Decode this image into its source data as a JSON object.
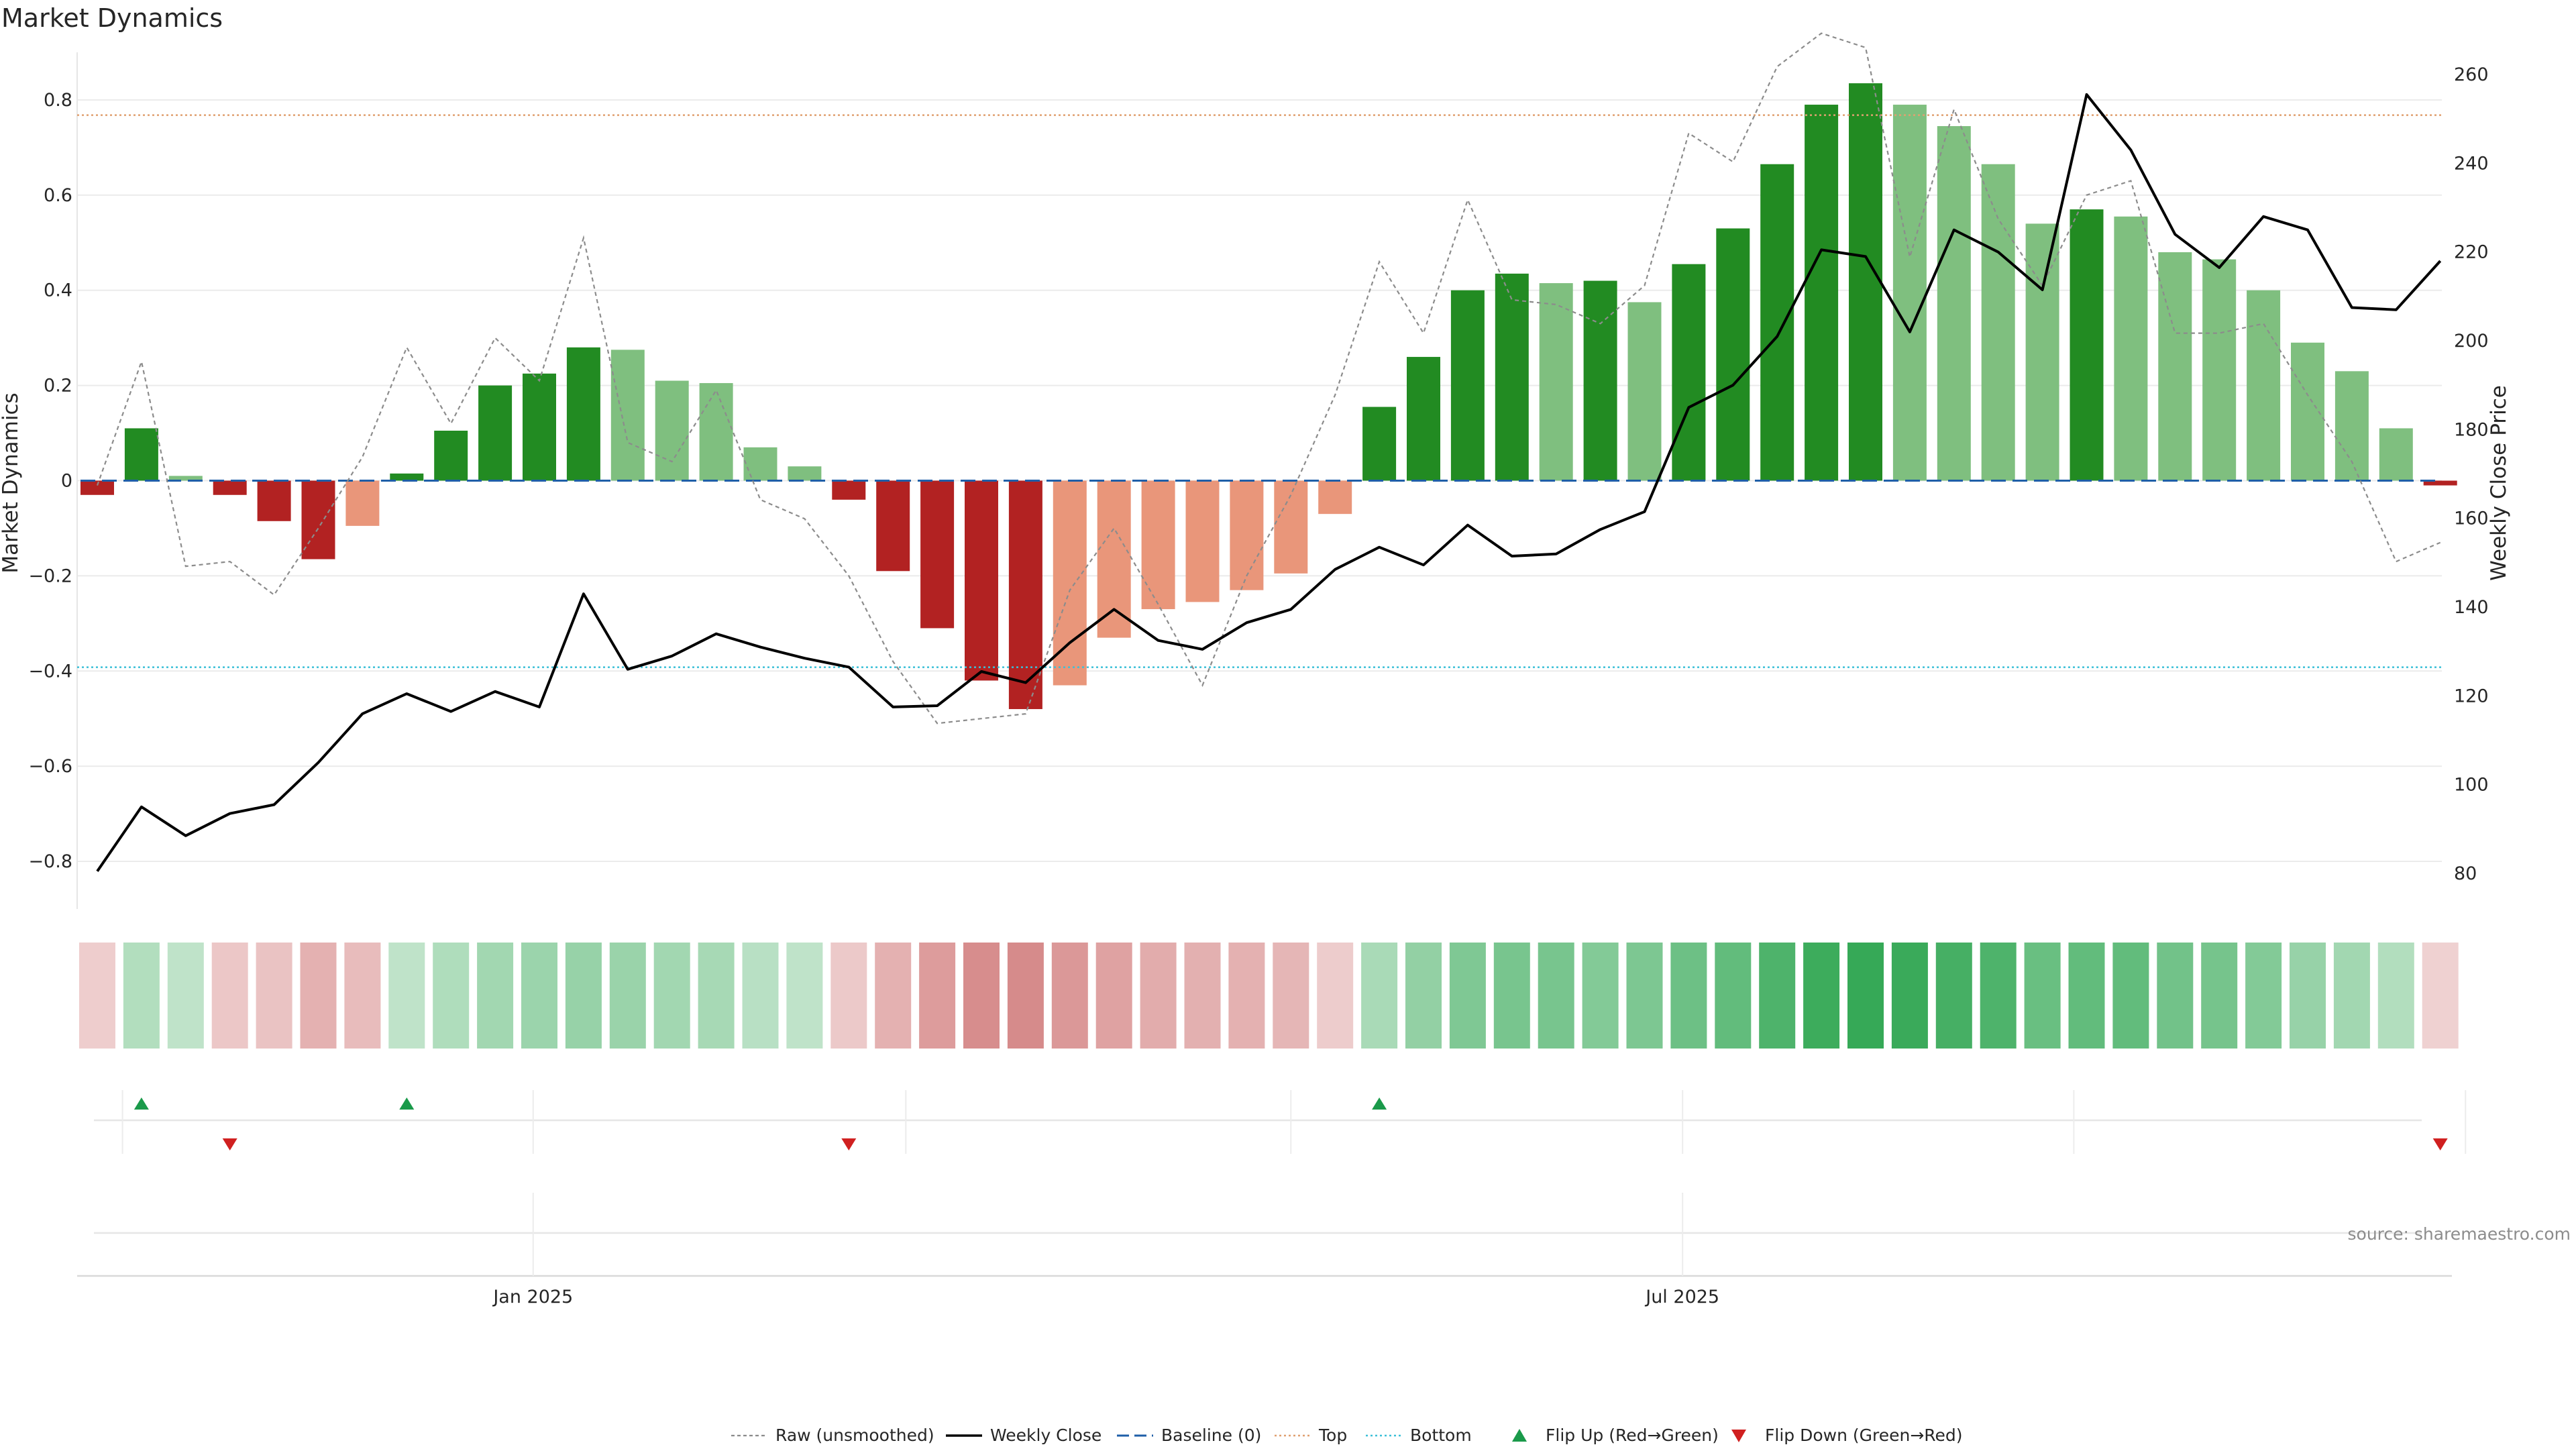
{
  "chart_data": {
    "type": "bar",
    "title": "Market Dynamics",
    "ylabel": "Market Dynamics",
    "y2label": "Weekly Close Price",
    "ylim": [
      -0.9,
      0.9
    ],
    "y2lim": [
      72,
      265
    ],
    "yticks": [
      -0.8,
      -0.6,
      -0.4,
      -0.2,
      0,
      0.2,
      0.4,
      0.6,
      0.8
    ],
    "ytick_labels": [
      "−0.8",
      "−0.6",
      "−0.4",
      "−0.2",
      "0",
      "0.2",
      "0.4",
      "0.6",
      "0.8"
    ],
    "y2ticks": [
      80,
      100,
      120,
      140,
      160,
      180,
      200,
      220,
      240,
      260
    ],
    "xtick_labels": [
      {
        "label": "Jan 2025",
        "index": 9.86
      },
      {
        "label": "Jul 2025",
        "index": 35.86
      }
    ],
    "week_separators": [
      0.57,
      9.86,
      18.29,
      27.0,
      35.86,
      44.71,
      53.57
    ],
    "top_level": 0.768,
    "bottom_level": -0.392,
    "baseline": 0,
    "values": [
      -0.03,
      0.11,
      0.01,
      -0.03,
      -0.085,
      -0.165,
      -0.095,
      0.015,
      0.105,
      0.2,
      0.225,
      0.28,
      0.275,
      0.21,
      0.205,
      0.07,
      0.03,
      -0.04,
      -0.19,
      -0.31,
      -0.42,
      -0.48,
      -0.43,
      -0.33,
      -0.27,
      -0.255,
      -0.23,
      -0.195,
      -0.07,
      0.155,
      0.26,
      0.4,
      0.435,
      0.415,
      0.42,
      0.375,
      0.455,
      0.53,
      0.665,
      0.79,
      0.835,
      0.79,
      0.745,
      0.665,
      0.54,
      0.57,
      0.555,
      0.48,
      0.465,
      0.4,
      0.29,
      0.23,
      0.11,
      -0.01
    ],
    "bar_tone": [
      "strong",
      "strong",
      "faded",
      "strong",
      "strong",
      "strong",
      "faded",
      "strong",
      "strong",
      "strong",
      "strong",
      "strong",
      "faded",
      "faded",
      "faded",
      "faded",
      "faded",
      "strong",
      "strong",
      "strong",
      "strong",
      "strong",
      "faded",
      "faded",
      "faded",
      "faded",
      "faded",
      "faded",
      "faded",
      "strong",
      "strong",
      "strong",
      "strong",
      "faded",
      "strong",
      "faded",
      "strong",
      "strong",
      "strong",
      "strong",
      "strong",
      "faded",
      "faded",
      "faded",
      "faded",
      "strong",
      "faded",
      "faded",
      "faded",
      "faded",
      "faded",
      "faded",
      "faded",
      "strong"
    ],
    "raw": [
      -0.01,
      0.25,
      -0.18,
      -0.17,
      -0.24,
      -0.1,
      0.05,
      0.28,
      0.12,
      0.3,
      0.21,
      0.51,
      0.08,
      0.04,
      0.19,
      -0.04,
      -0.08,
      -0.2,
      -0.38,
      -0.51,
      -0.5,
      -0.49,
      -0.23,
      -0.1,
      -0.26,
      -0.43,
      -0.2,
      -0.03,
      0.18,
      0.46,
      0.31,
      0.59,
      0.38,
      0.37,
      0.33,
      0.41,
      0.73,
      0.67,
      0.87,
      0.94,
      0.91,
      0.47,
      0.78,
      0.55,
      0.41,
      0.6,
      0.63,
      0.31,
      0.31,
      0.33,
      0.18,
      0.04,
      -0.17,
      -0.13
    ],
    "weekly_close": [
      80.5,
      95,
      88.5,
      93.5,
      95.5,
      105,
      116,
      120.5,
      116.5,
      121,
      117.5,
      143,
      126,
      129,
      134,
      131,
      128.5,
      126.5,
      117.5,
      117.8,
      125.5,
      123,
      132,
      139.5,
      132.5,
      130.5,
      136.5,
      139.5,
      148.5,
      153.5,
      149.5,
      158.5,
      151.5,
      152,
      157.5,
      161.5,
      185,
      190,
      201,
      220.5,
      219,
      202,
      225,
      220,
      211.5,
      255.5,
      243,
      224,
      216.5,
      228,
      225,
      207.5,
      207,
      218
    ],
    "heat_values": [
      -0.1,
      0.23,
      0.17,
      -0.13,
      -0.16,
      -0.24,
      -0.19,
      0.17,
      0.25,
      0.31,
      0.34,
      0.37,
      0.35,
      0.31,
      0.29,
      0.2,
      0.17,
      -0.12,
      -0.24,
      -0.35,
      -0.43,
      -0.44,
      -0.38,
      -0.32,
      -0.28,
      -0.26,
      -0.24,
      -0.22,
      -0.11,
      0.28,
      0.39,
      0.49,
      0.52,
      0.52,
      0.47,
      0.5,
      0.58,
      0.63,
      0.73,
      0.82,
      0.85,
      0.83,
      0.78,
      0.73,
      0.6,
      0.63,
      0.63,
      0.55,
      0.53,
      0.47,
      0.37,
      0.31,
      0.23,
      -0.08
    ],
    "flip_up": [
      1,
      7,
      29
    ],
    "flip_down": [
      3,
      17,
      53
    ],
    "legend": [
      {
        "label": "Raw (unsmoothed)",
        "style": "raw"
      },
      {
        "label": "Weekly Close",
        "style": "close"
      },
      {
        "label": "Baseline (0)",
        "style": "baseline"
      },
      {
        "label": "Top",
        "style": "top"
      },
      {
        "label": "Bottom",
        "style": "bottom"
      },
      {
        "label": "Flip Up (Red→Green)",
        "style": "flipup"
      },
      {
        "label": "Flip Down (Green→Red)",
        "style": "flipdown"
      }
    ],
    "colors": {
      "pos_strong": "#228b22",
      "pos_faded": "#7fbf7f",
      "neg_strong": "#b22222",
      "neg_faded": "#e9967a",
      "close": "#000000",
      "raw": "#8c8c8c",
      "baseline": "#1f5fa8",
      "top": "#e0a070",
      "bottom": "#3cc0d8",
      "flip_up": "#1a9a4a",
      "flip_down": "#d02020"
    },
    "source": "source: sharemaestro.com"
  }
}
